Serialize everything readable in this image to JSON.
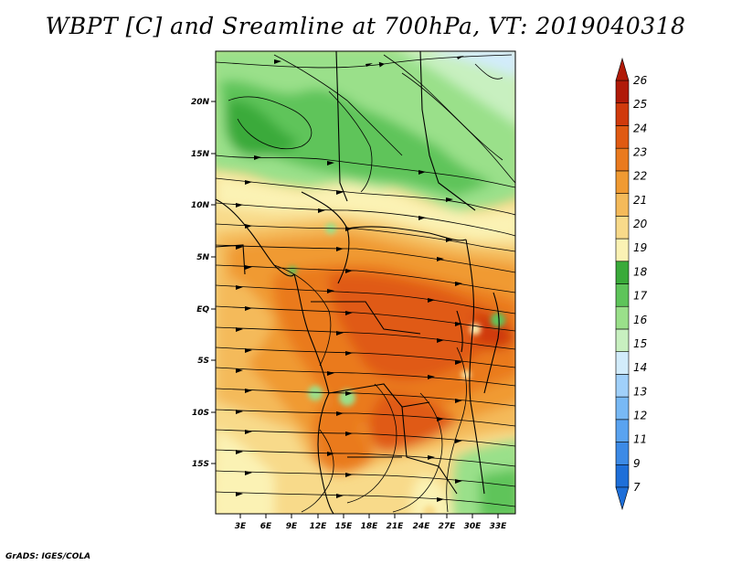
{
  "title": "WBPT [C] and Sreamline at 700hPa, VT: 2019040318",
  "footer": "GrADS: IGES/COLA",
  "lat_ticks": [
    "20N",
    "15N",
    "10N",
    "5N",
    "EQ",
    "5S",
    "10S",
    "15S"
  ],
  "lon_ticks": [
    "3E",
    "6E",
    "9E",
    "12E",
    "15E",
    "18E",
    "21E",
    "24E",
    "27E",
    "30E",
    "33E"
  ],
  "colorbar": {
    "labels": [
      "7",
      "9",
      "11",
      "12",
      "13",
      "14",
      "15",
      "16",
      "17",
      "18",
      "19",
      "20",
      "21",
      "22",
      "23",
      "24",
      "25",
      "26"
    ],
    "colors": [
      "#1e6fd9",
      "#3c8ae6",
      "#5aa3f0",
      "#78b9f5",
      "#a0d0fa",
      "#d2ecfb",
      "#c8f0c0",
      "#9ae08a",
      "#5ec45a",
      "#3aaa3a",
      "#fbf2b4",
      "#f8da8a",
      "#f4ba5a",
      "#f09a32",
      "#ea7a1e",
      "#e05a12",
      "#d03a0c",
      "#b01a08"
    ]
  }
}
